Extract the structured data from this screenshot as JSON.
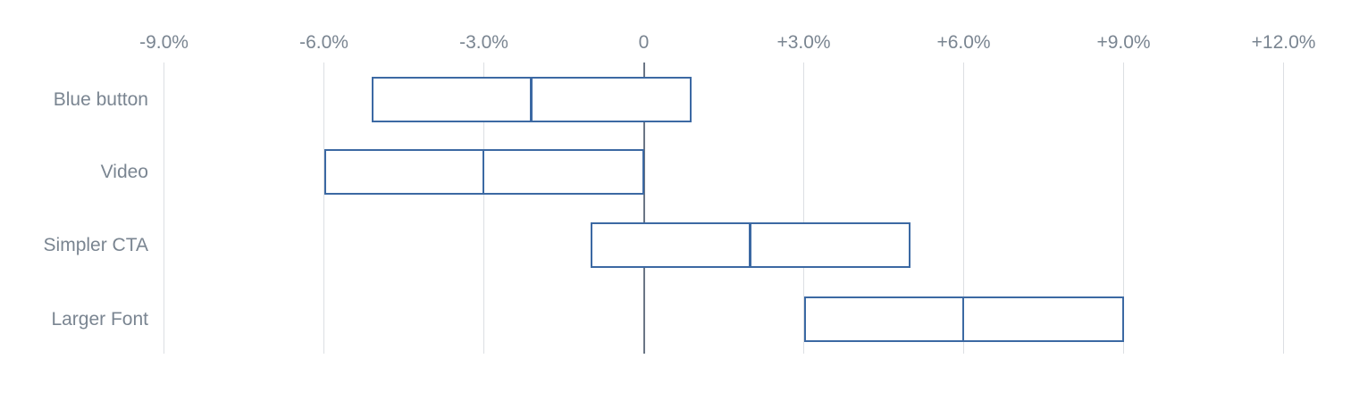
{
  "chart_data": {
    "type": "bar",
    "variant": "horizontal-range-interval",
    "title": "",
    "unit": "%",
    "categories": [
      "Blue button",
      "Video",
      "Simpler CTA",
      "Larger Font"
    ],
    "series": [
      {
        "name": "Blue button",
        "low": -5.1,
        "mid": -2.1,
        "high": 0.9
      },
      {
        "name": "Video",
        "low": -6.0,
        "mid": -3.0,
        "high": 0.0
      },
      {
        "name": "Simpler CTA",
        "low": -1.0,
        "mid": 2.0,
        "high": 5.0
      },
      {
        "name": "Larger Font",
        "low": 3.0,
        "mid": 6.0,
        "high": 9.0
      }
    ],
    "axis": {
      "position": "top",
      "min": -9,
      "max": 12,
      "grid": true,
      "ticks": [
        {
          "value": -9,
          "label": "-9.0%"
        },
        {
          "value": -6,
          "label": "-6.0%"
        },
        {
          "value": -3,
          "label": "-3.0%"
        },
        {
          "value": 0,
          "label": "0"
        },
        {
          "value": 3,
          "label": "+3.0%"
        },
        {
          "value": 6,
          "label": "+6.0%"
        },
        {
          "value": 9,
          "label": "+9.0%"
        },
        {
          "value": 12,
          "label": "+12.0%"
        }
      ]
    },
    "colors": {
      "box_border": "#3c69a3",
      "box_fill": "#ffffff",
      "gridline": "#dcdfe3",
      "zero_line": "#6a7585",
      "label_text": "#7a8591",
      "background": "#ffffff"
    }
  }
}
